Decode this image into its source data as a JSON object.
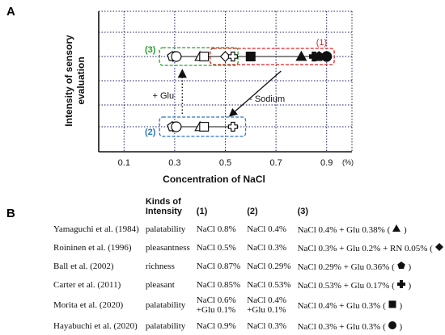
{
  "panel_a": {
    "letter": "A"
  },
  "panel_b": {
    "letter": "B"
  },
  "chart_data": {
    "type": "scatter",
    "title": "",
    "xlabel": "Concentration of NaCl",
    "ylabel": "Intensity of sensory evaluation",
    "x_unit": "(%)",
    "x_ticks": [
      "0.1",
      "0.3",
      "0.5",
      "0.7",
      "0.9"
    ],
    "xlim": [
      0.0,
      1.0
    ],
    "grid": true,
    "y_levels": {
      "high": "high",
      "low": "low"
    },
    "annotations": {
      "group1_label": "(1)",
      "group2_label": "(2)",
      "group3_label": "(3)",
      "glu_label": "+ Glu",
      "sodium_label": "- Sodium"
    },
    "colors": {
      "group1": "#e02020",
      "group2": "#2f74c0",
      "group3": "#2aa02a"
    },
    "series": [
      {
        "group": "1",
        "points": [
          {
            "x": 0.8,
            "y": "high",
            "symbol": "triangle"
          },
          {
            "x": 0.5,
            "y": "high",
            "symbol": "diamond"
          },
          {
            "x": 0.87,
            "y": "high",
            "symbol": "pentagon"
          },
          {
            "x": 0.85,
            "y": "high",
            "symbol": "cross"
          },
          {
            "x": 0.6,
            "y": "high",
            "symbol": "square"
          },
          {
            "x": 0.9,
            "y": "high",
            "symbol": "circle"
          }
        ]
      },
      {
        "group": "2",
        "points": [
          {
            "x": 0.4,
            "y": "low",
            "symbol": "triangle"
          },
          {
            "x": 0.3,
            "y": "low",
            "symbol": "diamond"
          },
          {
            "x": 0.29,
            "y": "low",
            "symbol": "pentagon"
          },
          {
            "x": 0.53,
            "y": "low",
            "symbol": "cross"
          },
          {
            "x": 0.4,
            "y": "low",
            "symbol": "square"
          },
          {
            "x": 0.3,
            "y": "low",
            "symbol": "circle"
          }
        ]
      },
      {
        "group": "3",
        "points": [
          {
            "x": 0.4,
            "y": "high",
            "symbol": "triangle"
          },
          {
            "x": 0.3,
            "y": "high",
            "symbol": "diamond"
          },
          {
            "x": 0.29,
            "y": "high",
            "symbol": "pentagon"
          },
          {
            "x": 0.53,
            "y": "high",
            "symbol": "cross"
          },
          {
            "x": 0.4,
            "y": "high",
            "symbol": "square"
          },
          {
            "x": 0.3,
            "y": "high",
            "symbol": "circle"
          }
        ]
      }
    ]
  },
  "table": {
    "headers": {
      "ref": "",
      "kind": "Kinds of Intensity",
      "c1": "(1)",
      "c2": "(2)",
      "c3": "(3)"
    },
    "rows": [
      {
        "ref": "Yamaguchi et al. (1984)",
        "kind": "palatability",
        "c1": "NaCl 0.8%",
        "c2": "NaCl 0.4%",
        "c3": "NaCl 0.4% + Glu 0.38% (",
        "c3_end": ")",
        "symbol": "triangle"
      },
      {
        "ref": "Roininen et al. (1996)",
        "kind": "pleasantness",
        "c1": "NaCl 0.5%",
        "c2": "NaCl 0.3%",
        "c3": "NaCl 0.3% + Glu 0.2% + RN 0.05% (",
        "c3_end": ")",
        "symbol": "diamond"
      },
      {
        "ref": "Ball et al. (2002)",
        "kind": "richness",
        "c1": "NaCl 0.87%",
        "c2": "NaCl 0.29%",
        "c3": "NaCl 0.29% + Glu 0.36% (",
        "c3_end": ")",
        "symbol": "pentagon"
      },
      {
        "ref": "Carter et al. (2011)",
        "kind": "pleasant",
        "c1": "NaCl 0.85%",
        "c2": "NaCl 0.53%",
        "c3": "NaCl 0.53% + Glu 0.17% (",
        "c3_end": ")",
        "symbol": "cross"
      },
      {
        "ref": "Morita et al. (2020)",
        "kind": "palatability",
        "c1": "NaCl 0.6%",
        "c1b": "+Glu 0.1%",
        "c2": "NaCl 0.4%",
        "c2b": "+Glu 0.1%",
        "c3": "NaCl 0.4% + Glu 0.3% (",
        "c3_end": ")",
        "symbol": "square"
      },
      {
        "ref": "Hayabuchi et al. (2020)",
        "kind": "palatability",
        "c1": "NaCl 0.9%",
        "c2": "NaCl 0.3%",
        "c3": "NaCl 0.3% + Glu 0.3% (",
        "c3_end": ")",
        "symbol": "circle"
      }
    ]
  }
}
